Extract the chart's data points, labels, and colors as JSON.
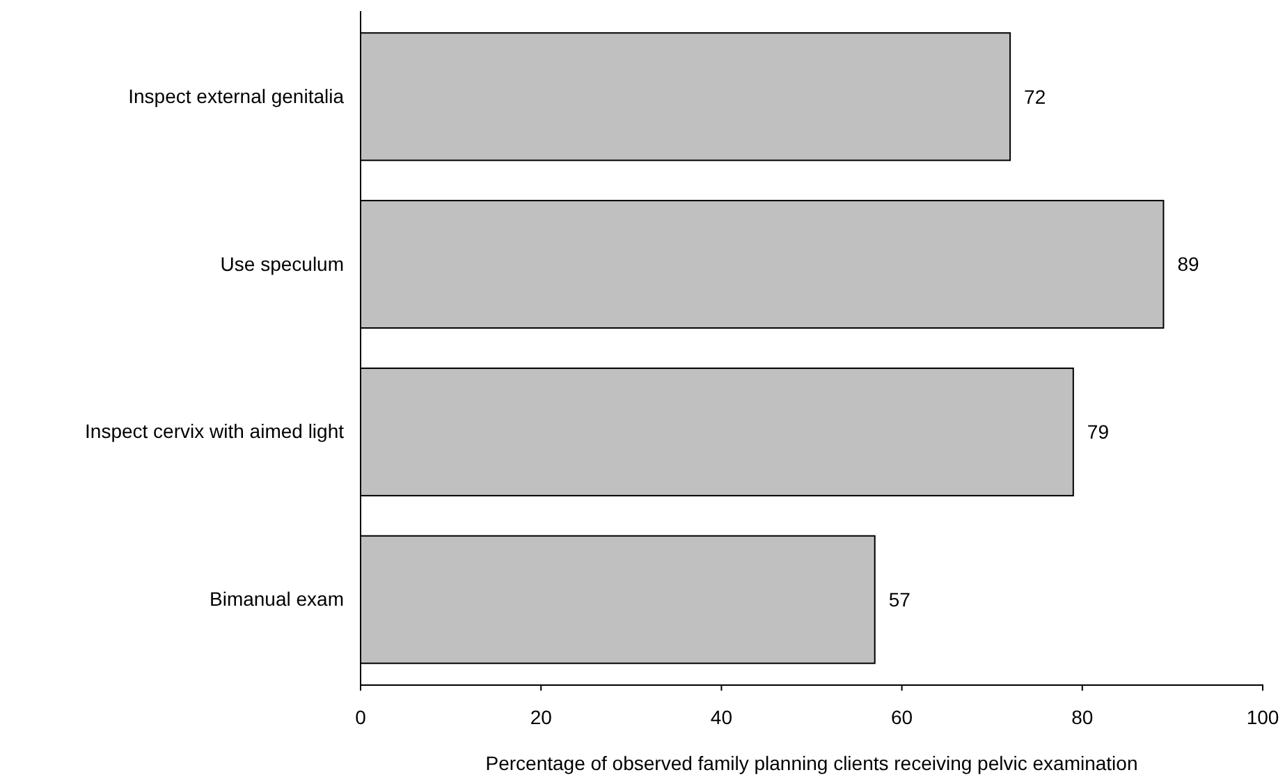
{
  "chart_data": {
    "type": "bar",
    "orientation": "horizontal",
    "categories": [
      "Inspect external genitalia",
      "Use speculum",
      "Inspect cervix with aimed light",
      "Bimanual exam"
    ],
    "values": [
      72,
      89,
      79,
      57
    ],
    "color": "#c0c0c0",
    "xlim": [
      0,
      100
    ],
    "xticks": [
      0,
      20,
      40,
      60,
      80,
      100
    ],
    "xlabel": "Percentage of observed family planning clients receiving pelvic examination",
    "data_labels": true
  }
}
